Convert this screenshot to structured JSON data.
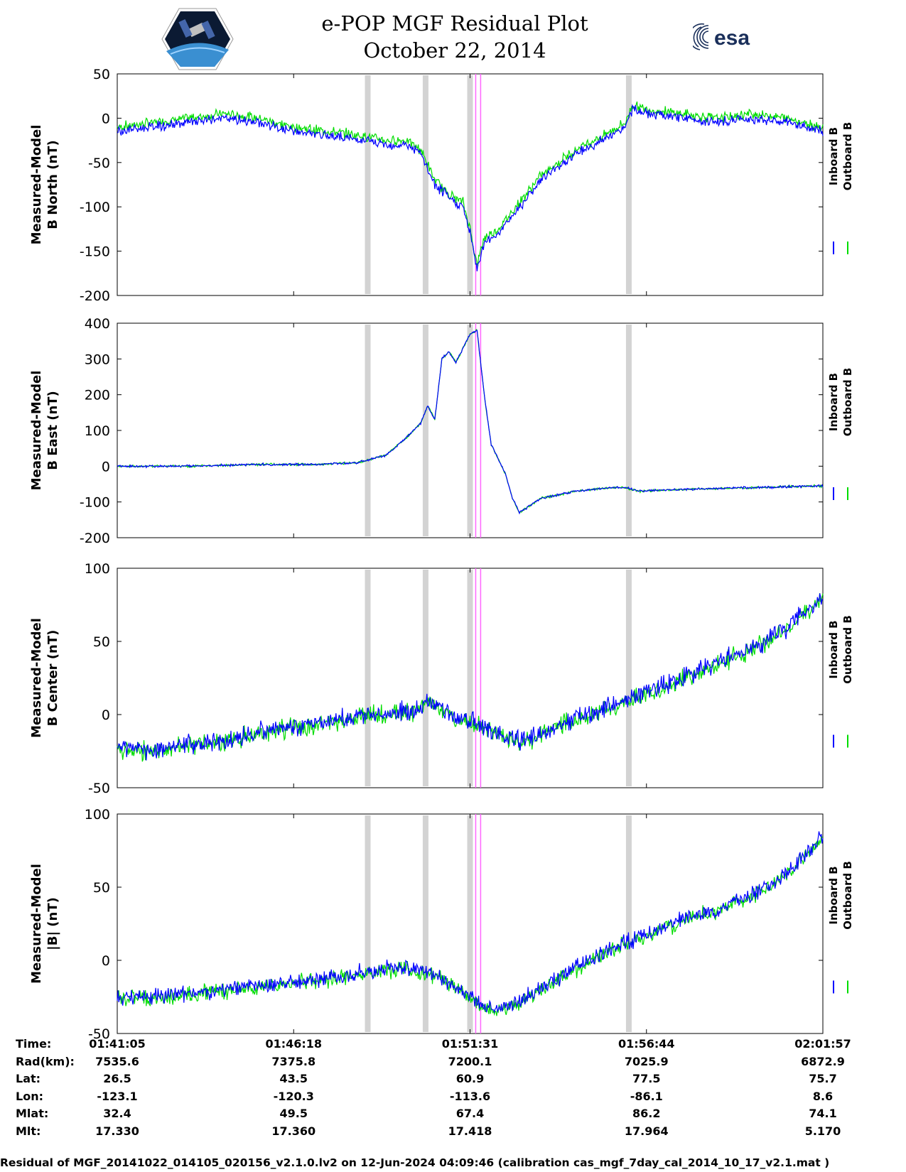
{
  "header": {
    "title_line1": "e-POP MGF Residual Plot",
    "title_line2": "October 22, 2014",
    "logo_right_text": "esa"
  },
  "legend": {
    "inboard": "Inboard B",
    "outboard": "Outboard B"
  },
  "colors": {
    "inboard": "#0000ff",
    "outboard": "#00dd00",
    "marker_gray": "#d3d3d3",
    "marker_magenta": "#ff66ff"
  },
  "markers": {
    "gray_x": [
      0.355,
      0.437,
      0.5,
      0.725
    ],
    "magenta_x": [
      0.508,
      0.515
    ]
  },
  "chart_data": [
    {
      "type": "line",
      "ylabel_line1": "Measured-Model",
      "ylabel_line2": "B North (nT)",
      "ylim": [
        -200,
        50
      ],
      "yticks": [
        50,
        0,
        -50,
        -100,
        -150,
        -200
      ],
      "series": [
        {
          "name": "Inboard B",
          "x": [
            0,
            0.05,
            0.1,
            0.15,
            0.2,
            0.25,
            0.3,
            0.35,
            0.38,
            0.41,
            0.43,
            0.45,
            0.47,
            0.49,
            0.5,
            0.51,
            0.52,
            0.54,
            0.56,
            0.6,
            0.65,
            0.7,
            0.72,
            0.73,
            0.75,
            0.8,
            0.85,
            0.9,
            0.95,
            1.0
          ],
          "y": [
            -15,
            -10,
            -5,
            0,
            -5,
            -15,
            -20,
            -25,
            -30,
            -30,
            -40,
            -75,
            -90,
            -100,
            -130,
            -170,
            -140,
            -130,
            -110,
            -70,
            -40,
            -20,
            -10,
            10,
            5,
            0,
            -5,
            0,
            -5,
            -15
          ]
        },
        {
          "name": "Outboard B",
          "x": [
            0,
            0.05,
            0.1,
            0.15,
            0.2,
            0.25,
            0.3,
            0.35,
            0.38,
            0.41,
            0.43,
            0.45,
            0.47,
            0.49,
            0.5,
            0.51,
            0.52,
            0.54,
            0.56,
            0.6,
            0.65,
            0.7,
            0.72,
            0.73,
            0.75,
            0.8,
            0.85,
            0.9,
            0.95,
            1.0
          ],
          "y": [
            -10,
            -5,
            0,
            5,
            0,
            -10,
            -15,
            -20,
            -25,
            -25,
            -35,
            -70,
            -85,
            -95,
            -125,
            -165,
            -135,
            -125,
            -105,
            -65,
            -35,
            -15,
            -5,
            15,
            10,
            5,
            0,
            5,
            0,
            -10
          ]
        }
      ]
    },
    {
      "type": "line",
      "ylabel_line1": "Measured-Model",
      "ylabel_line2": "B East (nT)",
      "ylim": [
        -200,
        400
      ],
      "yticks": [
        400,
        300,
        200,
        100,
        0,
        -100,
        -200
      ],
      "series": [
        {
          "name": "Inboard B",
          "x": [
            0,
            0.1,
            0.2,
            0.28,
            0.34,
            0.38,
            0.41,
            0.43,
            0.44,
            0.45,
            0.46,
            0.47,
            0.48,
            0.49,
            0.5,
            0.51,
            0.52,
            0.53,
            0.55,
            0.56,
            0.57,
            0.6,
            0.65,
            0.7,
            0.72,
            0.74,
            0.8,
            0.9,
            1.0
          ],
          "y": [
            0,
            0,
            5,
            5,
            10,
            30,
            80,
            120,
            170,
            130,
            300,
            320,
            290,
            330,
            370,
            380,
            200,
            60,
            -20,
            -90,
            -130,
            -90,
            -70,
            -60,
            -60,
            -70,
            -65,
            -60,
            -55
          ]
        },
        {
          "name": "Outboard B",
          "x": [
            0,
            0.1,
            0.2,
            0.28,
            0.34,
            0.38,
            0.41,
            0.43,
            0.44,
            0.45,
            0.46,
            0.47,
            0.48,
            0.49,
            0.5,
            0.51,
            0.52,
            0.53,
            0.55,
            0.56,
            0.57,
            0.6,
            0.65,
            0.7,
            0.72,
            0.74,
            0.8,
            0.9,
            1.0
          ],
          "y": [
            0,
            0,
            5,
            5,
            10,
            30,
            80,
            120,
            170,
            130,
            300,
            320,
            290,
            330,
            370,
            380,
            200,
            60,
            -20,
            -90,
            -130,
            -90,
            -70,
            -60,
            -60,
            -70,
            -65,
            -60,
            -55
          ]
        }
      ]
    },
    {
      "type": "line",
      "ylabel_line1": "Measured-Model",
      "ylabel_line2": "B Center (nT)",
      "ylim": [
        -50,
        100
      ],
      "yticks": [
        100,
        50,
        0,
        -50
      ],
      "series": [
        {
          "name": "Inboard B",
          "x": [
            0,
            0.05,
            0.1,
            0.15,
            0.2,
            0.25,
            0.3,
            0.35,
            0.4,
            0.43,
            0.44,
            0.47,
            0.5,
            0.52,
            0.55,
            0.58,
            0.6,
            0.65,
            0.7,
            0.75,
            0.8,
            0.85,
            0.9,
            0.95,
            1.0
          ],
          "y": [
            -22,
            -24,
            -20,
            -18,
            -12,
            -8,
            -5,
            0,
            2,
            5,
            10,
            0,
            -5,
            -8,
            -15,
            -18,
            -12,
            -2,
            5,
            15,
            25,
            35,
            45,
            60,
            80
          ]
        },
        {
          "name": "Outboard B",
          "x": [
            0,
            0.05,
            0.1,
            0.15,
            0.2,
            0.25,
            0.3,
            0.35,
            0.4,
            0.43,
            0.44,
            0.47,
            0.5,
            0.52,
            0.55,
            0.58,
            0.6,
            0.65,
            0.7,
            0.75,
            0.8,
            0.85,
            0.9,
            0.95,
            1.0
          ],
          "y": [
            -23,
            -25,
            -21,
            -19,
            -13,
            -9,
            -6,
            -1,
            1,
            4,
            9,
            -1,
            -6,
            -9,
            -16,
            -19,
            -13,
            -3,
            4,
            14,
            24,
            34,
            44,
            59,
            79
          ]
        }
      ]
    },
    {
      "type": "line",
      "ylabel_line1": "Measured-Model",
      "ylabel_line2": "|B| (nT)",
      "ylim": [
        -50,
        100
      ],
      "yticks": [
        100,
        50,
        0,
        -50
      ],
      "series": [
        {
          "name": "Inboard B",
          "x": [
            0,
            0.05,
            0.1,
            0.15,
            0.2,
            0.25,
            0.3,
            0.35,
            0.38,
            0.4,
            0.42,
            0.45,
            0.48,
            0.5,
            0.52,
            0.54,
            0.56,
            0.6,
            0.65,
            0.7,
            0.75,
            0.8,
            0.85,
            0.9,
            0.95,
            1.0
          ],
          "y": [
            -25,
            -25,
            -22,
            -20,
            -18,
            -15,
            -12,
            -8,
            -6,
            -5,
            -6,
            -10,
            -18,
            -25,
            -32,
            -33,
            -30,
            -20,
            -5,
            8,
            18,
            28,
            35,
            45,
            60,
            85
          ]
        },
        {
          "name": "Outboard B",
          "x": [
            0,
            0.05,
            0.1,
            0.15,
            0.2,
            0.25,
            0.3,
            0.35,
            0.38,
            0.4,
            0.42,
            0.45,
            0.48,
            0.5,
            0.52,
            0.54,
            0.56,
            0.6,
            0.65,
            0.7,
            0.75,
            0.8,
            0.85,
            0.9,
            0.95,
            1.0
          ],
          "y": [
            -26,
            -26,
            -23,
            -21,
            -19,
            -16,
            -13,
            -9,
            -7,
            -6,
            -7,
            -11,
            -19,
            -26,
            -33,
            -34,
            -31,
            -21,
            -6,
            7,
            17,
            27,
            34,
            44,
            59,
            84
          ]
        }
      ]
    }
  ],
  "info_table": {
    "labels": [
      "Time:",
      "Rad(km):",
      "Lat:",
      "Lon:",
      "Mlat:",
      "Mlt:"
    ],
    "columns": [
      [
        "01:41:05",
        "7535.6",
        "26.5",
        "-123.1",
        "32.4",
        "17.330"
      ],
      [
        "01:46:18",
        "7375.8",
        "43.5",
        "-120.3",
        "49.5",
        "17.360"
      ],
      [
        "01:51:31",
        "7200.1",
        "60.9",
        "-113.6",
        "67.4",
        "17.418"
      ],
      [
        "01:56:44",
        "7025.9",
        "77.5",
        "-86.1",
        "86.2",
        "17.964"
      ],
      [
        "02:01:57",
        "6872.9",
        "75.7",
        "8.6",
        "74.1",
        "5.170"
      ]
    ]
  },
  "footer": "Residual of MGF_20141022_014105_020156_v2.1.0.lv2 on 12-Jun-2024 04:09:46 (calibration cas_mgf_7day_cal_2014_10_17_v2.1.mat )"
}
